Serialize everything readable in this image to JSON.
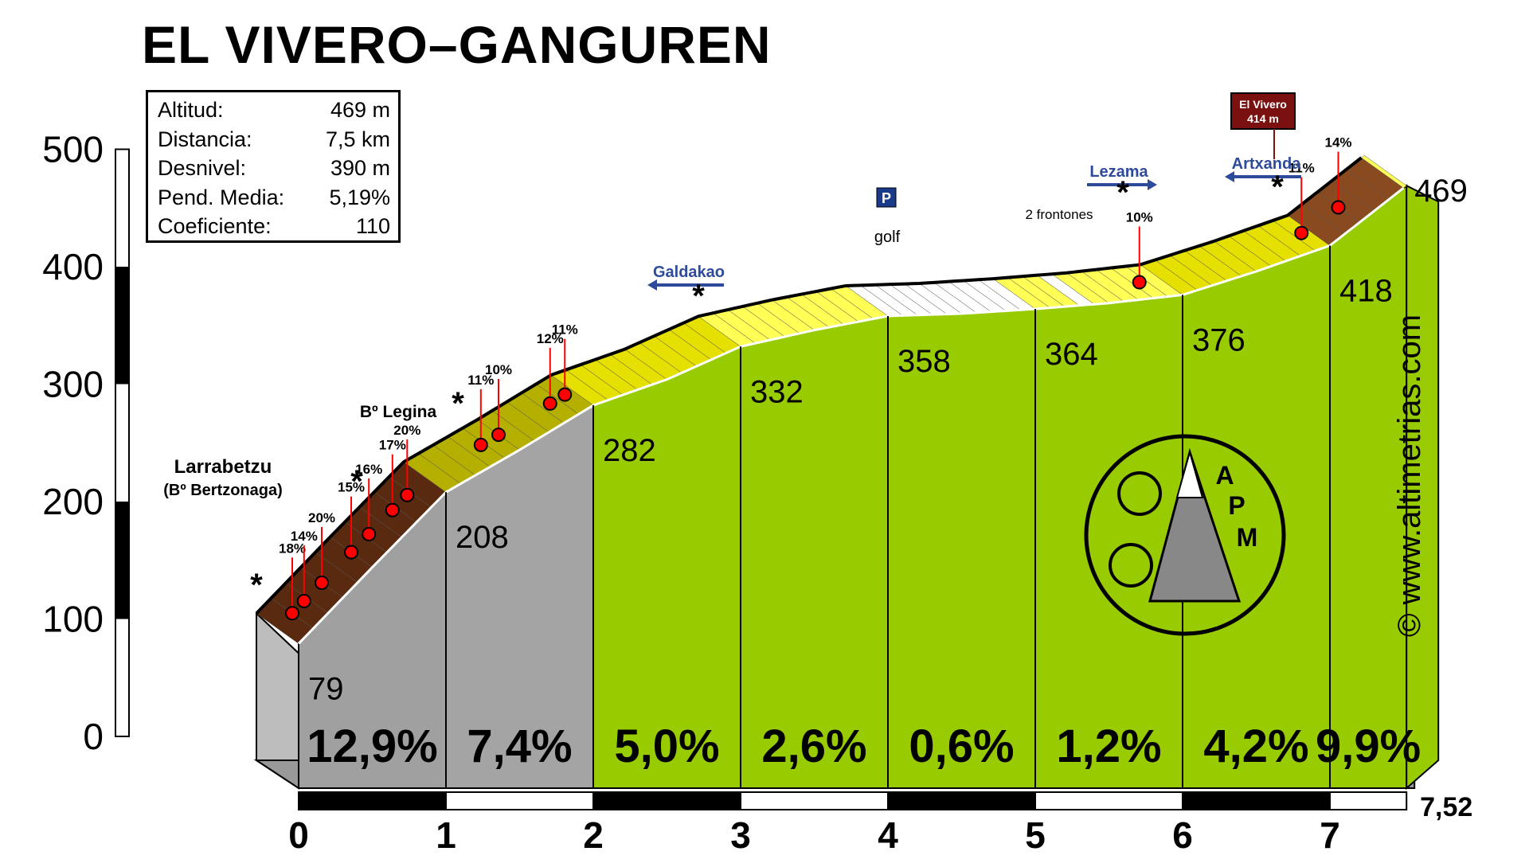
{
  "title": "EL VIVERO–GANGUREN",
  "stats": [
    {
      "label": "Altitud:",
      "value": "469 m"
    },
    {
      "label": "Distancia:",
      "value": "7,5 km"
    },
    {
      "label": "Desnivel:",
      "value": "390 m"
    },
    {
      "label": "Pend. Media:",
      "value": "5,19%"
    },
    {
      "label": "Coeficiente:",
      "value": "110"
    }
  ],
  "copyright": "© www.altimetrias.com",
  "chart_data": {
    "type": "area",
    "xlabel": "",
    "ylabel": "",
    "xlim": [
      0,
      7.52
    ],
    "ylim": [
      0,
      500
    ],
    "y_ticks": [
      "0",
      "100",
      "200",
      "300",
      "400",
      "500"
    ],
    "x_ticks": [
      "0",
      "1",
      "2",
      "3",
      "4",
      "5",
      "6",
      "7"
    ],
    "x_end_label": "7,52",
    "profile": [
      {
        "km": 0,
        "alt": 79
      },
      {
        "km": 0.5,
        "alt": 144
      },
      {
        "km": 1,
        "alt": 208
      },
      {
        "km": 1.5,
        "alt": 244
      },
      {
        "km": 2,
        "alt": 282
      },
      {
        "km": 2.5,
        "alt": 304
      },
      {
        "km": 3,
        "alt": 332
      },
      {
        "km": 3.5,
        "alt": 346
      },
      {
        "km": 4,
        "alt": 358
      },
      {
        "km": 4.5,
        "alt": 360
      },
      {
        "km": 5,
        "alt": 364
      },
      {
        "km": 5.5,
        "alt": 369
      },
      {
        "km": 6,
        "alt": 376
      },
      {
        "km": 6.5,
        "alt": 396
      },
      {
        "km": 7,
        "alt": 418
      },
      {
        "km": 7.52,
        "alt": 469
      }
    ],
    "km_altitudes": [
      "79",
      "208",
      "282",
      "332",
      "358",
      "364",
      "376",
      "418",
      "469"
    ],
    "segment_gradients": [
      "12,9%",
      "7,4%",
      "5,0%",
      "2,6%",
      "0,6%",
      "1,2%",
      "4,2%",
      "9,9%"
    ],
    "gradient_labels": [
      {
        "km": 0.1,
        "text": "18%"
      },
      {
        "km": 0.18,
        "text": "14%"
      },
      {
        "km": 0.3,
        "text": "20%"
      },
      {
        "km": 0.5,
        "text": "15%"
      },
      {
        "km": 0.62,
        "text": "16%"
      },
      {
        "km": 0.78,
        "text": "17%"
      },
      {
        "km": 0.88,
        "text": "20%"
      },
      {
        "km": 1.38,
        "text": "11%"
      },
      {
        "km": 1.5,
        "text": "10%"
      },
      {
        "km": 1.85,
        "text": "12%"
      },
      {
        "km": 1.95,
        "text": "11%"
      },
      {
        "km": 5.85,
        "text": "10%"
      },
      {
        "km": 6.95,
        "text": "11%"
      },
      {
        "km": 7.2,
        "text": "14%"
      }
    ],
    "places": [
      {
        "name": "Larrabetzu",
        "sub": "(Bº Bertzonaga)"
      },
      {
        "name": "Bº Legina"
      },
      {
        "name": "Galdakao"
      },
      {
        "name": "golf"
      },
      {
        "name": "2 frontones"
      },
      {
        "name": "Lezama"
      },
      {
        "name": "Artxanda"
      },
      {
        "name": "El Vivero",
        "sub": "414 m"
      }
    ],
    "logo_text": "APM",
    "colors": {
      "area_climb": "#99cc00",
      "area_start": "#a0a0a0",
      "road_red": "#ff0000",
      "sign_blue": "#2e4a9a",
      "sign_darkred": "#7a1010"
    }
  }
}
